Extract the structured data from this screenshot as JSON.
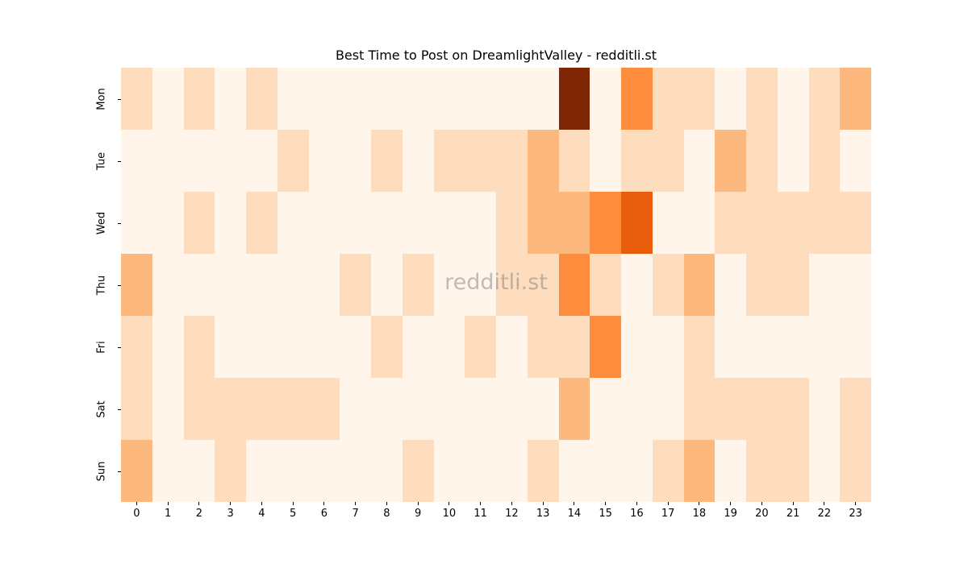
{
  "chart_data": {
    "type": "heatmap",
    "title": "Best Time to Post on DreamlightValley - redditli.st",
    "watermark": "redditli.st",
    "xlabel": "",
    "ylabel": "",
    "x": [
      "0",
      "1",
      "2",
      "3",
      "4",
      "5",
      "6",
      "7",
      "8",
      "9",
      "10",
      "11",
      "12",
      "13",
      "14",
      "15",
      "16",
      "17",
      "18",
      "19",
      "20",
      "21",
      "22",
      "23"
    ],
    "y": [
      "Mon",
      "Tue",
      "Wed",
      "Thu",
      "Fri",
      "Sat",
      "Sun"
    ],
    "colormap": "Oranges",
    "color_levels": [
      "#fff5eb",
      "#fdddbd",
      "#fdb97d",
      "#fd8d3c",
      "#e95e0d",
      "#7f2704"
    ],
    "values": [
      [
        1,
        0,
        1,
        0,
        1,
        0,
        0,
        0,
        0,
        0,
        0,
        0,
        0,
        0,
        5,
        0,
        3,
        1,
        1,
        0,
        1,
        0,
        1,
        2
      ],
      [
        0,
        0,
        0,
        0,
        0,
        1,
        0,
        0,
        1,
        0,
        1,
        1,
        1,
        2,
        1,
        0,
        1,
        1,
        0,
        2,
        1,
        0,
        1,
        0
      ],
      [
        0,
        0,
        1,
        0,
        1,
        0,
        0,
        0,
        0,
        0,
        0,
        0,
        1,
        2,
        2,
        3,
        4,
        0,
        0,
        1,
        1,
        1,
        1,
        1
      ],
      [
        2,
        0,
        0,
        0,
        0,
        0,
        0,
        1,
        0,
        1,
        0,
        0,
        1,
        1,
        3,
        1,
        0,
        1,
        2,
        0,
        1,
        1,
        0,
        0
      ],
      [
        1,
        0,
        1,
        0,
        0,
        0,
        0,
        0,
        1,
        0,
        0,
        1,
        0,
        1,
        1,
        3,
        0,
        0,
        1,
        0,
        0,
        0,
        0,
        0
      ],
      [
        1,
        0,
        1,
        1,
        1,
        1,
        1,
        0,
        0,
        0,
        0,
        0,
        0,
        0,
        2,
        0,
        0,
        0,
        1,
        1,
        1,
        1,
        0,
        1
      ],
      [
        2,
        0,
        0,
        1,
        0,
        0,
        0,
        0,
        0,
        1,
        0,
        0,
        0,
        1,
        0,
        0,
        0,
        1,
        2,
        0,
        1,
        1,
        0,
        1
      ]
    ],
    "colorbar": false,
    "grid": false
  }
}
